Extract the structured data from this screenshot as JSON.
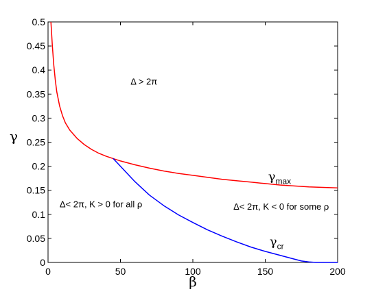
{
  "chart_data": {
    "type": "line",
    "xlabel": "β",
    "ylabel": "γ",
    "xlim": [
      0,
      200
    ],
    "ylim": [
      0,
      0.5
    ],
    "xticks": [
      0,
      50,
      100,
      150,
      200
    ],
    "yticks": [
      0,
      0.05,
      0.1,
      0.15,
      0.2,
      0.25,
      0.3,
      0.35,
      0.4,
      0.45,
      0.5
    ],
    "xtick_labels": [
      "0",
      "50",
      "100",
      "150",
      "200"
    ],
    "ytick_labels": [
      "0",
      "0.05",
      "0.1",
      "0.15",
      "0.2",
      "0.25",
      "0.3",
      "0.35",
      "0.4",
      "0.45",
      "0.5"
    ],
    "grid": false,
    "series": [
      {
        "name": "γmax",
        "color": "#ff0000",
        "x": [
          2,
          3,
          4,
          5,
          6,
          8,
          10,
          12,
          15,
          20,
          25,
          30,
          35,
          40,
          45,
          50,
          60,
          70,
          80,
          90,
          100,
          110,
          120,
          130,
          140,
          150,
          160,
          170,
          180,
          190,
          200
        ],
        "y": [
          0.5,
          0.45,
          0.41,
          0.38,
          0.355,
          0.325,
          0.305,
          0.29,
          0.275,
          0.258,
          0.245,
          0.235,
          0.227,
          0.221,
          0.216,
          0.211,
          0.203,
          0.196,
          0.19,
          0.185,
          0.181,
          0.177,
          0.173,
          0.17,
          0.167,
          0.164,
          0.161,
          0.159,
          0.157,
          0.156,
          0.155
        ]
      },
      {
        "name": "γcr",
        "color": "#0000ff",
        "x": [
          45,
          50,
          60,
          70,
          80,
          90,
          100,
          110,
          120,
          130,
          140,
          150,
          160,
          170,
          175,
          180,
          185,
          190,
          200
        ],
        "y": [
          0.216,
          0.2,
          0.168,
          0.14,
          0.118,
          0.099,
          0.083,
          0.068,
          0.055,
          0.043,
          0.032,
          0.023,
          0.015,
          0.007,
          0.003,
          0.001,
          0.0,
          0.0,
          0.0
        ]
      }
    ],
    "annotations": [
      {
        "text": "Δ > 2π",
        "x": 57,
        "y": 0.37
      },
      {
        "text": "Δ< 2π, K > 0 for all ρ",
        "x": 8,
        "y": 0.115
      },
      {
        "text": "Δ< 2π, K < 0 for some ρ",
        "x": 128,
        "y": 0.11
      },
      {
        "text": "γ",
        "sub": "max",
        "x": 152,
        "y": 0.17
      },
      {
        "text": "γ",
        "sub": "cr",
        "x": 153,
        "y": 0.035
      }
    ]
  }
}
